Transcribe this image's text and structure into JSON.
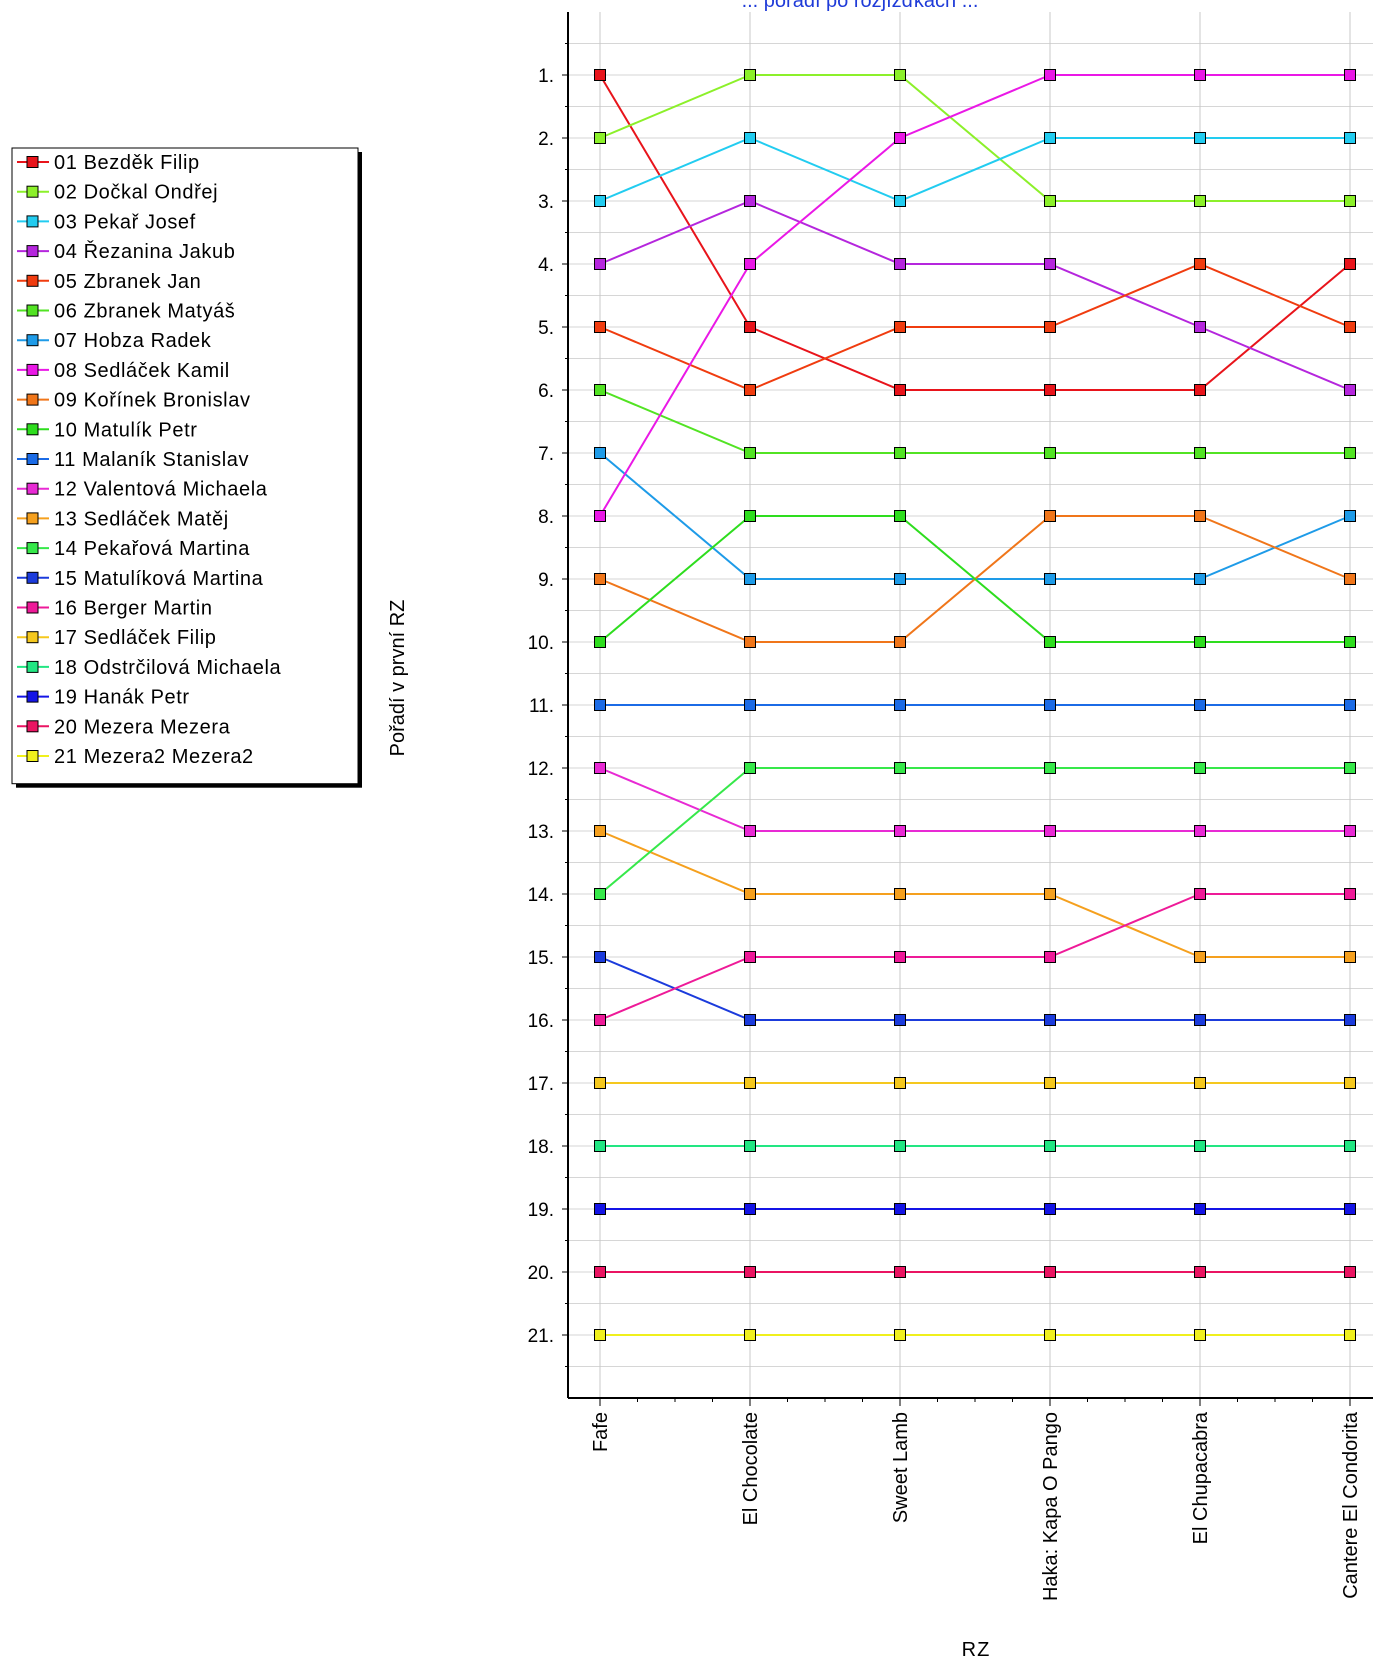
{
  "chart_data": {
    "type": "line",
    "title_fragment": "... pořadí po rozjížďkách ...",
    "xlabel": "RZ",
    "ylabel": "Pořadí v první RZ",
    "categories": [
      "Fafe",
      "El Chocolate",
      "Sweet Lamb",
      "Haka: Kapa O Pango",
      "El Chupacabra",
      "Cantere El Condorita"
    ],
    "y_ticks": [
      "1.",
      "2.",
      "3.",
      "4.",
      "5.",
      "6.",
      "7.",
      "8.",
      "9.",
      "10.",
      "11.",
      "12.",
      "13.",
      "14.",
      "15.",
      "16.",
      "17.",
      "18.",
      "19.",
      "20.",
      "21."
    ],
    "ylim": [
      0,
      22
    ],
    "y_inverted": true,
    "grid": true,
    "legend_position": "left",
    "series": [
      {
        "name": "01 Bezděk Filip",
        "color": "#e8141b",
        "values": [
          1,
          5,
          6,
          6,
          6,
          4
        ]
      },
      {
        "name": "02 Dočkal Ondřej",
        "color": "#8cf02a",
        "values": [
          2,
          1,
          1,
          3,
          3,
          3
        ]
      },
      {
        "name": "03 Pekař Josef",
        "color": "#22ccf0",
        "values": [
          3,
          2,
          3,
          2,
          2,
          2
        ]
      },
      {
        "name": "04 Řezanina Jakub",
        "color": "#b526dd",
        "values": [
          4,
          3,
          4,
          4,
          5,
          6
        ]
      },
      {
        "name": "05 Zbranek Jan",
        "color": "#f03c0f",
        "values": [
          5,
          6,
          5,
          5,
          4,
          5
        ]
      },
      {
        "name": "06 Zbranek Matyáš",
        "color": "#52e323",
        "values": [
          6,
          7,
          7,
          7,
          7,
          7
        ]
      },
      {
        "name": "07 Hobza Radek",
        "color": "#1e9be8",
        "values": [
          7,
          9,
          9,
          9,
          9,
          8
        ]
      },
      {
        "name": "08 Sedláček Kamil",
        "color": "#ea18e6",
        "values": [
          8,
          4,
          2,
          1,
          1,
          1
        ]
      },
      {
        "name": "09 Kořínek Bronislav",
        "color": "#f0761a",
        "values": [
          9,
          10,
          10,
          8,
          8,
          9
        ]
      },
      {
        "name": "10 Matulík Petr",
        "color": "#2edd1e",
        "values": [
          10,
          8,
          8,
          10,
          10,
          10
        ]
      },
      {
        "name": "11 Malaník Stanislav",
        "color": "#1b6be6",
        "values": [
          11,
          11,
          11,
          11,
          11,
          11
        ]
      },
      {
        "name": "12 Valentová Michaela",
        "color": "#e82ad4",
        "values": [
          12,
          13,
          13,
          13,
          13,
          13
        ]
      },
      {
        "name": "13 Sedláček Matěj",
        "color": "#f5a01e",
        "values": [
          13,
          14,
          14,
          14,
          15,
          15
        ]
      },
      {
        "name": "14 Pekařová Martina",
        "color": "#36e84a",
        "values": [
          14,
          12,
          12,
          12,
          12,
          12
        ]
      },
      {
        "name": "15 Matulíková Martina",
        "color": "#1b3bdc",
        "values": [
          15,
          16,
          16,
          16,
          16,
          16
        ]
      },
      {
        "name": "16 Berger Martin",
        "color": "#ee1a98",
        "values": [
          16,
          15,
          15,
          15,
          14,
          14
        ]
      },
      {
        "name": "17 Sedláček Filip",
        "color": "#f5c81e",
        "values": [
          17,
          17,
          17,
          17,
          17,
          17
        ]
      },
      {
        "name": "18 Odstrčilová Michaela",
        "color": "#22e682",
        "values": [
          18,
          18,
          18,
          18,
          18,
          18
        ]
      },
      {
        "name": "19 Hanák Petr",
        "color": "#1414e6",
        "values": [
          19,
          19,
          19,
          19,
          19,
          19
        ]
      },
      {
        "name": "20 Mezera Mezera",
        "color": "#ea1462",
        "values": [
          20,
          20,
          20,
          20,
          20,
          20
        ]
      },
      {
        "name": "21 Mezera2 Mezera2",
        "color": "#f0f01c",
        "values": [
          21,
          21,
          21,
          21,
          21,
          21
        ]
      }
    ]
  }
}
